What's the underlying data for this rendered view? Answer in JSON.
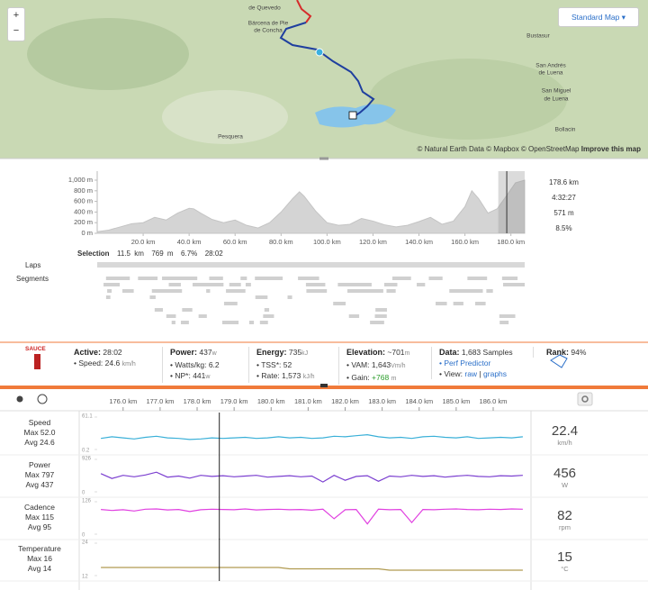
{
  "map": {
    "zoom_in": "+",
    "zoom_out": "−",
    "style_button": "Standard Map",
    "places": [
      "de Quevedo",
      "Bárcena de Pie",
      "de Concha",
      "Bustasur",
      "San Andrés",
      "de Luena",
      "San Miguel",
      "de Luena",
      "Bollacin",
      "Pesquera"
    ],
    "attribution": "© Natural Earth Data © Mapbox © OpenStreetMap",
    "improve_link": "Improve this map"
  },
  "elevation_summary": {
    "distance": "178.6 km",
    "time": "4:32:27",
    "elevation": "571 m",
    "grade": "8.5%"
  },
  "selection": {
    "label": "Selection",
    "distance": "11.5 km",
    "elevation": "769 m",
    "grade": "6.7%",
    "time": "28:02"
  },
  "rows": {
    "laps": "Laps",
    "segments": "Segments"
  },
  "stats": {
    "logo": "SAUCE",
    "active": {
      "label": "Active:",
      "value": "28:02",
      "speed": {
        "label": "Speed:",
        "value": "24.6",
        "unit": "km/h"
      }
    },
    "power": {
      "label": "Power:",
      "value": "437",
      "unit": "w",
      "wkg": {
        "label": "Watts/kg:",
        "value": "6.2"
      },
      "np": {
        "label": "NP*:",
        "value": "441",
        "unit": "w"
      }
    },
    "energy": {
      "label": "Energy:",
      "value": "735",
      "unit": "kJ",
      "tss": {
        "label": "TSS*:",
        "value": "52"
      },
      "rate": {
        "label": "Rate:",
        "value": "1,573",
        "unit": "kJ/h"
      }
    },
    "elevation": {
      "label": "Elevation:",
      "value": "~701",
      "unit": "m",
      "vam": {
        "label": "VAM:",
        "value": "1,643",
        "unit": "Vm/h"
      },
      "gain": {
        "label": "Gain:",
        "value": "+768",
        "unit": "m"
      }
    },
    "data": {
      "label": "Data:",
      "value": "1,683 Samples",
      "predictor": "Perf Predictor",
      "view": {
        "label": "View:",
        "raw": "raw",
        "sep": "|",
        "graphs": "graphs"
      }
    },
    "rank": {
      "label": "Rank:",
      "value": "94%"
    }
  },
  "streams": [
    {
      "name": "Speed",
      "max": "Max 52.0",
      "avg": "Avg 24.6",
      "current": "22.4",
      "unit": "km/h"
    },
    {
      "name": "Power",
      "max": "Max 797",
      "avg": "Avg 437",
      "current": "456",
      "unit": "W"
    },
    {
      "name": "Cadence",
      "max": "Max 115",
      "avg": "Avg 95",
      "current": "82",
      "unit": "rpm"
    },
    {
      "name": "Temperature",
      "max": "Max 16",
      "avg": "Avg 14",
      "current": "15",
      "unit": "°C"
    }
  ],
  "chart_data": [
    {
      "type": "area",
      "color": "#d4d4d4",
      "x": [
        0,
        5,
        10,
        15,
        20,
        25,
        30,
        35,
        40,
        42,
        45,
        50,
        55,
        60,
        65,
        70,
        75,
        80,
        85,
        88,
        90,
        95,
        100,
        105,
        110,
        115,
        120,
        125,
        130,
        135,
        140,
        145,
        150,
        155,
        160,
        163,
        166,
        170,
        174,
        178,
        182,
        186
      ],
      "values": [
        30,
        60,
        120,
        180,
        200,
        300,
        250,
        380,
        470,
        460,
        380,
        260,
        200,
        250,
        150,
        100,
        200,
        400,
        650,
        780,
        700,
        420,
        200,
        150,
        170,
        280,
        230,
        160,
        120,
        150,
        220,
        300,
        170,
        230,
        500,
        800,
        650,
        380,
        460,
        700,
        950,
        1000
      ],
      "xlim": [
        0,
        186
      ],
      "ylim": [
        0,
        1000
      ],
      "yticks": [
        {
          "value": 1000,
          "label": "1,000 m"
        },
        {
          "value": 800,
          "label": "800 m"
        },
        {
          "value": 600,
          "label": "600 m"
        },
        {
          "value": 400,
          "label": "400 m"
        },
        {
          "value": 200,
          "label": "200 m"
        },
        {
          "value": 0,
          "label": "0 m"
        }
      ],
      "xticks": [
        {
          "value": 20,
          "label": "20.0 km"
        },
        {
          "value": 40,
          "label": "40.0 km"
        },
        {
          "value": 60,
          "label": "60.0 km"
        },
        {
          "value": 80,
          "label": "80.0 km"
        },
        {
          "value": 100,
          "label": "100.0 km"
        },
        {
          "value": 120,
          "label": "120.0 km"
        },
        {
          "value": 140,
          "label": "140.0 km"
        },
        {
          "value": 160,
          "label": "160.0 km"
        },
        {
          "value": 180,
          "label": "180.0 km"
        }
      ],
      "selection_range": [
        174.5,
        186
      ],
      "cursor": 178.2
    },
    {
      "type": "line",
      "color": "#3ab0d8",
      "x": [
        175.4,
        175.7,
        176.0,
        176.3,
        176.6,
        176.9,
        177.2,
        177.5,
        177.8,
        178.1,
        178.4,
        178.7,
        179.0,
        179.3,
        179.6,
        179.9,
        180.2,
        180.5,
        180.8,
        181.1,
        181.4,
        181.7,
        182.0,
        182.3,
        182.6,
        182.9,
        183.2,
        183.5,
        183.8,
        184.1,
        184.4,
        184.7,
        185.0,
        185.3,
        185.6,
        185.9,
        186.2,
        186.5,
        186.8
      ],
      "values": [
        21,
        24,
        22,
        20,
        23,
        25,
        22,
        21,
        19,
        20,
        22,
        21,
        22,
        23,
        21,
        22,
        24,
        22,
        23,
        21,
        22,
        25,
        24,
        26,
        28,
        24,
        22,
        23,
        21,
        24,
        25,
        23,
        22,
        24,
        21,
        22,
        23,
        22,
        24
      ],
      "xlim": [
        175.3,
        186.9
      ],
      "ylim": [
        0.2,
        61.1
      ],
      "yticks": [
        61.1,
        0.2
      ],
      "xticks": [
        {
          "value": 176,
          "label": "176.0 km"
        },
        {
          "value": 177,
          "label": "177.0 km"
        },
        {
          "value": 178,
          "label": "178.0 km"
        },
        {
          "value": 179,
          "label": "179.0 km"
        },
        {
          "value": 180,
          "label": "180.0 km"
        },
        {
          "value": 181,
          "label": "181.0 km"
        },
        {
          "value": 182,
          "label": "182.0 km"
        },
        {
          "value": 183,
          "label": "183.0 km"
        },
        {
          "value": 184,
          "label": "184.0 km"
        },
        {
          "value": 185,
          "label": "185.0 km"
        },
        {
          "value": 186,
          "label": "186.0 km"
        }
      ],
      "cursor": 178.6
    },
    {
      "type": "line",
      "color": "#7b3fd0",
      "x": [
        175.4,
        175.7,
        176.0,
        176.3,
        176.6,
        176.9,
        177.2,
        177.5,
        177.8,
        178.1,
        178.4,
        178.7,
        179.0,
        179.3,
        179.6,
        179.9,
        180.2,
        180.5,
        180.8,
        181.1,
        181.4,
        181.7,
        182.0,
        182.3,
        182.6,
        182.9,
        183.2,
        183.5,
        183.8,
        184.1,
        184.4,
        184.7,
        185.0,
        185.3,
        185.6,
        185.9,
        186.2,
        186.5,
        186.8
      ],
      "values": [
        520,
        380,
        470,
        430,
        480,
        560,
        420,
        450,
        390,
        470,
        440,
        460,
        430,
        450,
        470,
        420,
        440,
        460,
        430,
        450,
        280,
        470,
        330,
        440,
        460,
        300,
        450,
        430,
        470,
        440,
        460,
        420,
        450,
        470,
        440,
        430,
        460,
        450,
        470
      ],
      "xlim": [
        175.3,
        186.9
      ],
      "ylim": [
        0,
        926
      ],
      "yticks": [
        926,
        0
      ],
      "cursor": 178.6
    },
    {
      "type": "line",
      "color": "#e040e0",
      "x": [
        175.4,
        175.7,
        176.0,
        176.3,
        176.6,
        176.9,
        177.2,
        177.5,
        177.8,
        178.1,
        178.4,
        178.7,
        179.0,
        179.3,
        179.6,
        179.9,
        180.2,
        180.5,
        180.8,
        181.1,
        181.4,
        181.7,
        182.0,
        182.3,
        182.6,
        182.9,
        183.2,
        183.5,
        183.8,
        184.1,
        184.4,
        184.7,
        185.0,
        185.3,
        185.6,
        185.9,
        186.2,
        186.5,
        186.8
      ],
      "values": [
        96,
        92,
        95,
        90,
        97,
        98,
        94,
        96,
        88,
        95,
        97,
        96,
        95,
        98,
        94,
        96,
        97,
        95,
        96,
        93,
        97,
        60,
        95,
        96,
        40,
        97,
        95,
        96,
        45,
        96,
        95,
        97,
        98,
        96,
        95,
        97,
        96,
        98,
        97
      ],
      "xlim": [
        175.3,
        186.9
      ],
      "ylim": [
        0,
        126
      ],
      "yticks": [
        126,
        0
      ],
      "cursor": 178.6
    },
    {
      "type": "line",
      "color": "#b09a50",
      "x": [
        175.4,
        175.7,
        176.0,
        176.3,
        176.6,
        176.9,
        177.2,
        177.5,
        177.8,
        178.1,
        178.4,
        178.7,
        179.0,
        179.3,
        179.6,
        179.9,
        180.2,
        180.5,
        180.8,
        181.1,
        181.4,
        181.7,
        182.0,
        182.3,
        182.6,
        182.9,
        183.2,
        183.5,
        183.8,
        184.1,
        184.4,
        184.7,
        185.0,
        185.3,
        185.6,
        185.9,
        186.2,
        186.5,
        186.8
      ],
      "values": [
        15,
        15,
        15,
        15,
        15,
        15,
        15,
        15,
        15,
        15,
        15,
        15,
        15,
        15,
        15,
        15,
        15,
        14.5,
        14.5,
        14.5,
        14.5,
        14.5,
        14.5,
        14.5,
        14.5,
        14.5,
        14,
        14,
        14,
        14,
        14,
        14,
        14,
        14,
        14,
        14,
        14,
        14,
        14
      ],
      "xlim": [
        175.3,
        186.9
      ],
      "ylim": [
        12,
        24
      ],
      "yticks": [
        24,
        12
      ],
      "cursor": 178.6
    }
  ]
}
